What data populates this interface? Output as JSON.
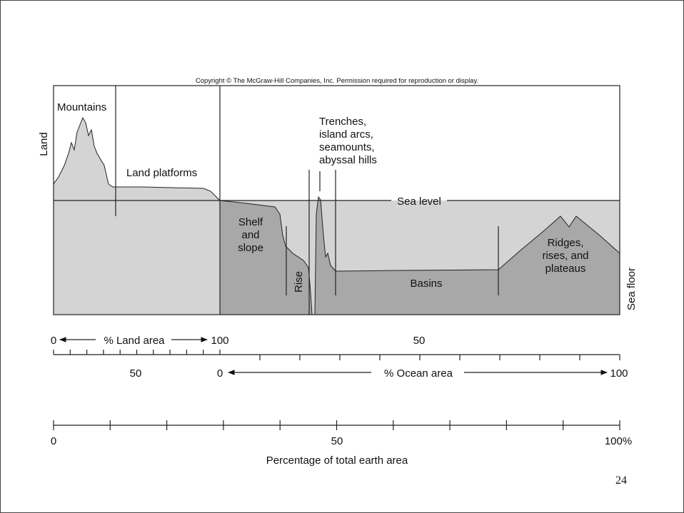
{
  "copyright": "Copyright © The McGraw-Hill Companies, Inc. Permission required for reproduction or display.",
  "labels": {
    "land": "Land",
    "sea_floor": "Sea floor",
    "mountains": "Mountains",
    "land_platforms": "Land platforms",
    "trenches": [
      "Trenches,",
      "island arcs,",
      "seamounts,",
      "abyssal hills"
    ],
    "sea_level": "Sea level",
    "shelf": [
      "Shelf",
      "and",
      "slope"
    ],
    "rise": "Rise",
    "basins": "Basins",
    "ridges": [
      "Ridges,",
      "rises, and",
      "plateaus"
    ]
  },
  "land_scale": {
    "start": "0",
    "title": "% Land area",
    "end": "100",
    "ocean_mid": "50"
  },
  "ocean_scale": {
    "land_mid": "50",
    "start": "0",
    "title": "% Ocean area",
    "end": "100"
  },
  "earth_axis": {
    "start": "0",
    "mid": "50",
    "end": "100%",
    "title": "Percentage of total earth area"
  },
  "page_number": "24"
}
